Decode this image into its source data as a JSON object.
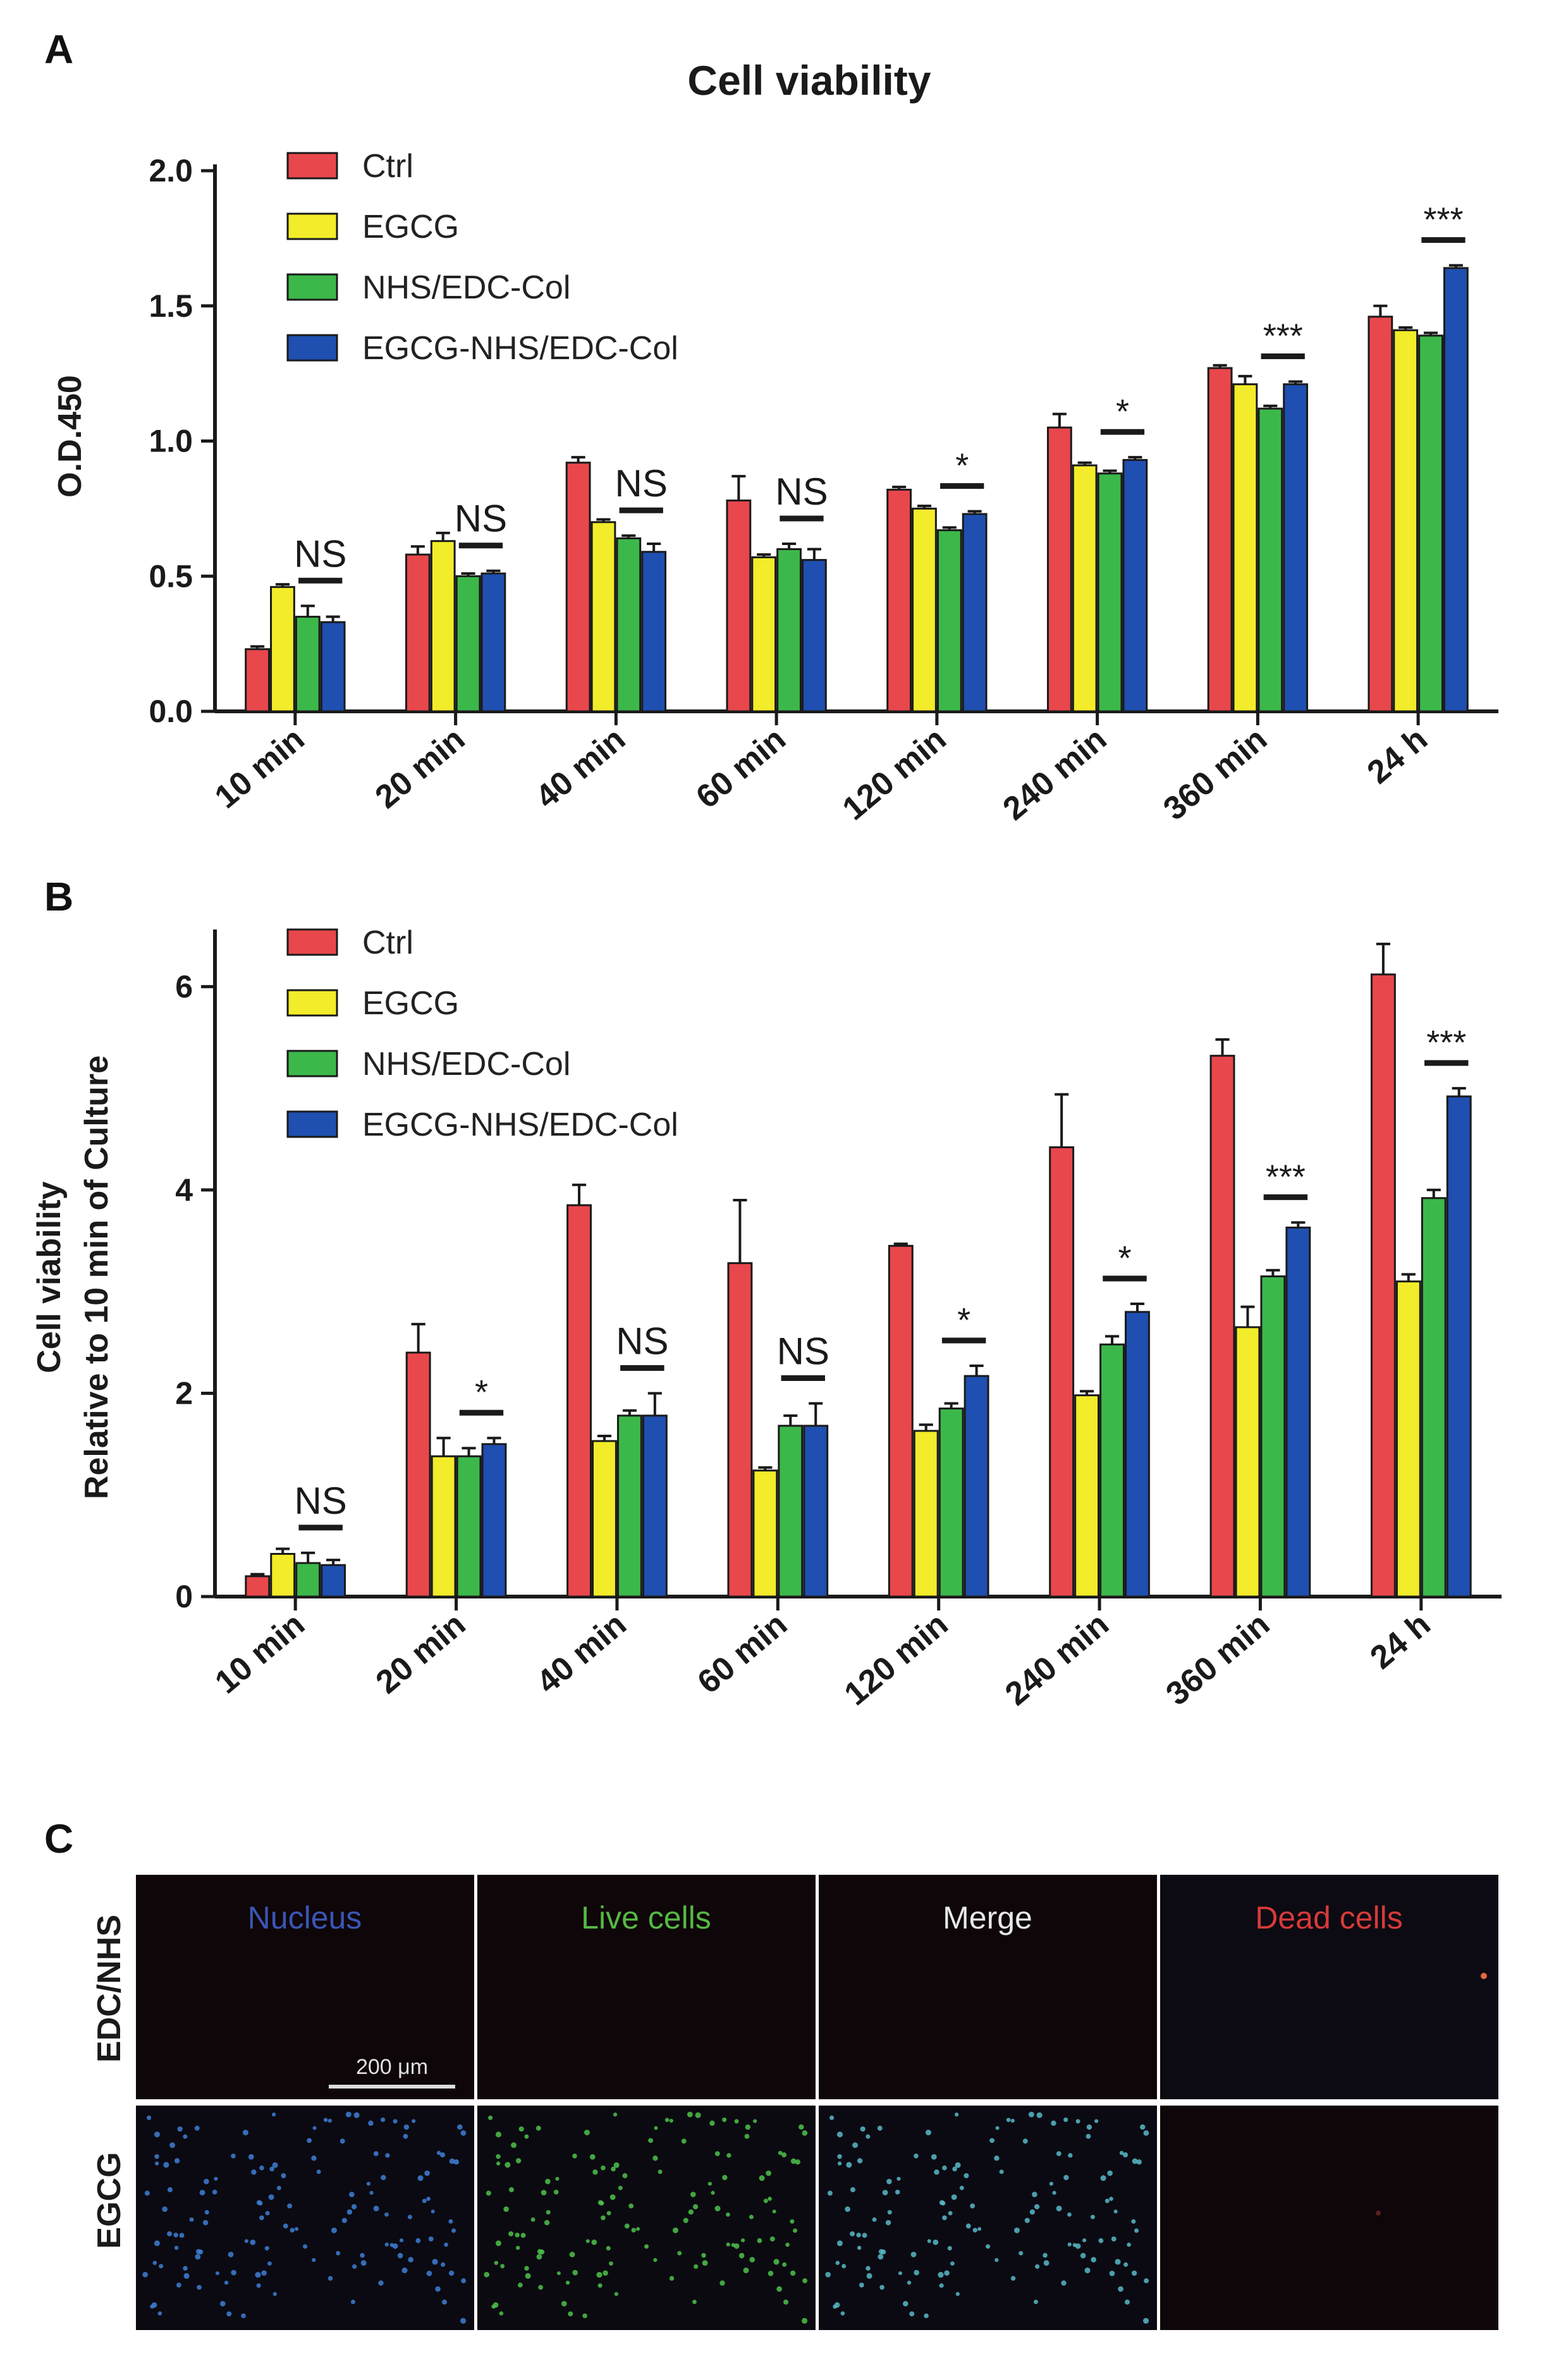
{
  "panel_letters": {
    "a": "A",
    "b": "B",
    "c": "C"
  },
  "series_colors": {
    "Ctrl": "#e8474c",
    "EGCG": "#f2ec2a",
    "NHS/EDC-Col": "#3cb84a",
    "EGCG-NHS/EDC-Col": "#1f4fb0"
  },
  "chart_data": [
    {
      "id": "A",
      "type": "bar",
      "title": "Cell viability",
      "xlabel": "",
      "ylabel": "O.D.450",
      "ylim": [
        0,
        2.0
      ],
      "yticks": [
        "0.0",
        "0.5",
        "1.0",
        "1.5",
        "2.0"
      ],
      "legend_position": "top-left",
      "categories": [
        "10 min",
        "20 min",
        "40 min",
        "60 min",
        "120 min",
        "240 min",
        "360 min",
        "24 h"
      ],
      "series": [
        {
          "name": "Ctrl",
          "values": [
            0.23,
            0.58,
            0.92,
            0.78,
            0.82,
            1.05,
            1.27,
            1.46
          ],
          "errors": [
            0.01,
            0.03,
            0.02,
            0.09,
            0.01,
            0.05,
            0.01,
            0.04
          ]
        },
        {
          "name": "EGCG",
          "values": [
            0.46,
            0.63,
            0.7,
            0.57,
            0.75,
            0.91,
            1.21,
            1.41
          ],
          "errors": [
            0.01,
            0.03,
            0.01,
            0.01,
            0.01,
            0.01,
            0.03,
            0.01
          ]
        },
        {
          "name": "NHS/EDC-Col",
          "values": [
            0.35,
            0.5,
            0.64,
            0.6,
            0.67,
            0.88,
            1.12,
            1.39
          ],
          "errors": [
            0.04,
            0.01,
            0.01,
            0.02,
            0.01,
            0.01,
            0.01,
            0.01
          ]
        },
        {
          "name": "EGCG-NHS/EDC-Col",
          "values": [
            0.33,
            0.51,
            0.59,
            0.56,
            0.73,
            0.93,
            1.21,
            1.64
          ],
          "errors": [
            0.02,
            0.01,
            0.03,
            0.04,
            0.01,
            0.01,
            0.01,
            0.01
          ]
        }
      ],
      "significance": [
        "NS",
        "NS",
        "NS",
        "NS",
        "*",
        "*",
        "***",
        "***"
      ]
    },
    {
      "id": "B",
      "type": "bar",
      "title": "",
      "xlabel": "",
      "ylabel": "Cell viability",
      "ylabel2": "Relative to 10 min of Culture",
      "ylim": [
        0,
        6.5
      ],
      "yticks": [
        "0",
        "2",
        "4",
        "6"
      ],
      "legend_position": "top-left",
      "categories": [
        "10 min",
        "20 min",
        "40 min",
        "60 min",
        "120 min",
        "240 min",
        "360 min",
        "24 h"
      ],
      "series": [
        {
          "name": "Ctrl",
          "values": [
            0.2,
            2.4,
            3.85,
            3.28,
            3.45,
            4.42,
            5.32,
            6.12
          ],
          "errors": [
            0.02,
            0.28,
            0.2,
            0.62,
            0.02,
            0.52,
            0.16,
            0.3
          ]
        },
        {
          "name": "EGCG",
          "values": [
            0.42,
            1.38,
            1.53,
            1.24,
            1.63,
            1.98,
            2.65,
            3.1
          ],
          "errors": [
            0.05,
            0.18,
            0.05,
            0.03,
            0.06,
            0.04,
            0.2,
            0.07
          ]
        },
        {
          "name": "NHS/EDC-Col",
          "values": [
            0.33,
            1.38,
            1.78,
            1.68,
            1.85,
            2.48,
            3.15,
            3.92
          ],
          "errors": [
            0.1,
            0.08,
            0.05,
            0.1,
            0.05,
            0.08,
            0.06,
            0.08
          ]
        },
        {
          "name": "EGCG-NHS/EDC-Col",
          "values": [
            0.31,
            1.5,
            1.78,
            1.68,
            2.17,
            2.8,
            3.63,
            4.92
          ],
          "errors": [
            0.05,
            0.06,
            0.22,
            0.22,
            0.1,
            0.08,
            0.05,
            0.08
          ]
        }
      ],
      "significance": [
        "NS",
        "*",
        "NS",
        "NS",
        "*",
        "*",
        "***",
        "***"
      ]
    }
  ],
  "panel_c": {
    "column_labels": [
      "Nucleus",
      "Live cells",
      "Merge",
      "Dead cells"
    ],
    "column_label_colors": [
      "#3a55b5",
      "#55b845",
      "#e8e8e8",
      "#d63a3a"
    ],
    "row_labels": [
      "EDC/NHS",
      "EGCG"
    ],
    "scale_bar_label": "200 μm"
  }
}
